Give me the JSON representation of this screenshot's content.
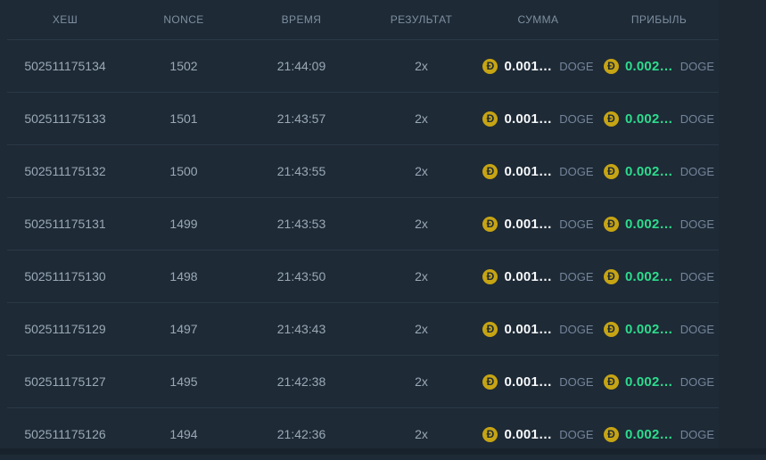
{
  "table": {
    "columns": [
      {
        "key": "hash",
        "label": "ХЕШ"
      },
      {
        "key": "nonce",
        "label": "NONCE"
      },
      {
        "key": "time",
        "label": "ВРЕМЯ"
      },
      {
        "key": "result",
        "label": "РЕЗУЛЬТАТ"
      },
      {
        "key": "amount",
        "label": "СУММА"
      },
      {
        "key": "profit",
        "label": "ПРИБЫЛЬ"
      }
    ],
    "rows": [
      {
        "hash": "502511175134",
        "nonce": "1502",
        "time": "21:44:09",
        "result": "2x",
        "amount_value": "0.001…",
        "amount_currency": "DOGE",
        "profit_value": "0.002…",
        "profit_currency": "DOGE"
      },
      {
        "hash": "502511175133",
        "nonce": "1501",
        "time": "21:43:57",
        "result": "2x",
        "amount_value": "0.001…",
        "amount_currency": "DOGE",
        "profit_value": "0.002…",
        "profit_currency": "DOGE"
      },
      {
        "hash": "502511175132",
        "nonce": "1500",
        "time": "21:43:55",
        "result": "2x",
        "amount_value": "0.001…",
        "amount_currency": "DOGE",
        "profit_value": "0.002…",
        "profit_currency": "DOGE"
      },
      {
        "hash": "502511175131",
        "nonce": "1499",
        "time": "21:43:53",
        "result": "2x",
        "amount_value": "0.001…",
        "amount_currency": "DOGE",
        "profit_value": "0.002…",
        "profit_currency": "DOGE"
      },
      {
        "hash": "502511175130",
        "nonce": "1498",
        "time": "21:43:50",
        "result": "2x",
        "amount_value": "0.001…",
        "amount_currency": "DOGE",
        "profit_value": "0.002…",
        "profit_currency": "DOGE"
      },
      {
        "hash": "502511175129",
        "nonce": "1497",
        "time": "21:43:43",
        "result": "2x",
        "amount_value": "0.001…",
        "amount_currency": "DOGE",
        "profit_value": "0.002…",
        "profit_currency": "DOGE"
      },
      {
        "hash": "502511175127",
        "nonce": "1495",
        "time": "21:42:38",
        "result": "2x",
        "amount_value": "0.001…",
        "amount_currency": "DOGE",
        "profit_value": "0.002…",
        "profit_currency": "DOGE"
      },
      {
        "hash": "502511175126",
        "nonce": "1494",
        "time": "21:42:36",
        "result": "2x",
        "amount_value": "0.001…",
        "amount_currency": "DOGE",
        "profit_value": "0.002…",
        "profit_currency": "DOGE"
      }
    ]
  },
  "icons": {
    "doge_coin": "Đ"
  },
  "theme": {
    "background": "#1e2a36",
    "row_divider": "#2b3946",
    "header_text": "#7e8fa0",
    "cell_text": "#9aa9b6",
    "amount_text": "#f7f9fb",
    "profit_text": "#2ddc8d",
    "unit_text": "#74859a",
    "coin_fill": "#c6a413",
    "coin_glyph": "#1e2a36"
  }
}
